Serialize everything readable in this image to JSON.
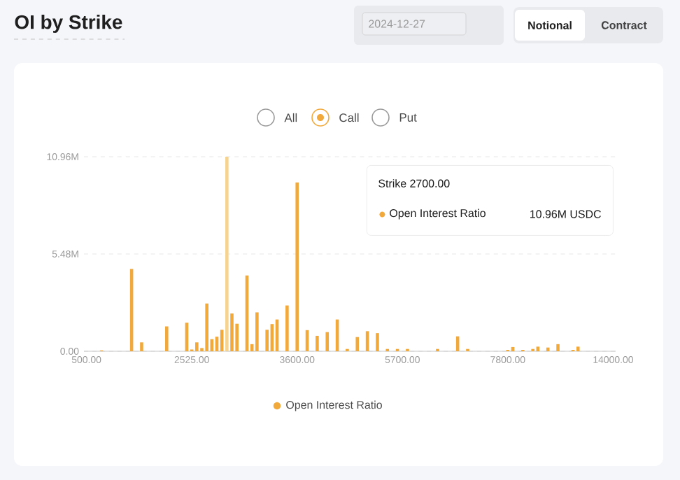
{
  "chart_data": {
    "type": "bar",
    "title": "OI by Strike",
    "categories": [
      "500.00",
      null,
      null,
      null,
      null,
      null,
      null,
      null,
      null,
      null,
      null,
      null,
      null,
      null,
      null,
      null,
      null,
      null,
      null,
      null,
      null,
      "2525.00",
      null,
      null,
      null,
      null,
      null,
      null,
      null,
      null,
      null,
      null,
      null,
      null,
      null,
      null,
      null,
      null,
      null,
      null,
      null,
      null,
      "3600.00",
      null,
      null,
      null,
      null,
      null,
      null,
      null,
      null,
      null,
      null,
      null,
      null,
      null,
      null,
      null,
      null,
      null,
      null,
      null,
      null,
      "5700.00",
      null,
      null,
      null,
      null,
      null,
      null,
      null,
      null,
      null,
      null,
      null,
      null,
      null,
      null,
      null,
      null,
      null,
      null,
      null,
      null,
      "7800.00",
      null,
      null,
      null,
      null,
      null,
      null,
      null,
      null,
      null,
      null,
      null,
      null,
      null,
      null,
      null,
      null,
      null,
      null,
      null,
      null,
      "14000.00"
    ],
    "series": [
      {
        "name": "Open Interest Ratio",
        "color": "#f2a93b",
        "values": [
          null,
          null,
          null,
          0.05,
          null,
          null,
          null,
          null,
          null,
          4.64,
          null,
          0.5,
          null,
          null,
          null,
          null,
          1.4,
          null,
          null,
          null,
          1.61,
          0.1,
          0.5,
          0.18,
          2.69,
          0.68,
          0.82,
          1.21,
          10.96,
          2.13,
          1.55,
          null,
          4.27,
          0.4,
          2.19,
          null,
          1.21,
          1.53,
          1.79,
          null,
          2.58,
          null,
          9.51,
          null,
          1.19,
          null,
          0.87,
          null,
          1.08,
          null,
          1.79,
          null,
          0.13,
          null,
          0.8,
          null,
          1.13,
          null,
          1.02,
          null,
          0.13,
          null,
          0.13,
          null,
          0.13,
          null,
          null,
          null,
          null,
          null,
          0.13,
          null,
          null,
          null,
          0.84,
          null,
          0.13,
          null,
          null,
          null,
          null,
          null,
          null,
          null,
          0.08,
          0.24,
          null,
          0.08,
          null,
          0.13,
          0.26,
          null,
          0.21,
          null,
          0.4,
          null,
          null,
          0.08,
          0.26,
          null,
          null,
          null,
          null,
          null,
          null,
          null
        ],
        "colors": [
          "#f2a93b",
          "#f2a93b",
          "#f2a93b",
          "#f2a93b",
          "#f2a93b",
          "#f2a93b",
          "#f2a93b",
          "#f2a93b",
          "#f2a93b",
          "#f2a93b",
          "#f2a93b",
          "#f2a93b",
          "#f2a93b",
          "#f2a93b",
          "#f2a93b",
          "#f2a93b",
          "#f2a93b",
          "#f2a93b",
          "#f2a93b",
          "#f2a93b",
          "#f2a93b",
          "#f2a93b",
          "#f2a93b",
          "#f2a93b",
          "#f2a93b",
          "#f2a93b",
          "#f2a93b",
          "#f2a93b",
          "#f6d48f",
          "#f2a93b",
          "#f2a93b",
          "#f2a93b",
          "#f2a93b",
          "#f2a93b",
          "#f2a93b",
          "#f2a93b",
          "#f2a93b",
          "#f2a93b",
          "#f2a93b",
          "#f2a93b",
          "#f2a93b",
          "#f2a93b",
          "#f2a93b",
          "#f2a93b",
          "#f2a93b",
          "#f2a93b",
          "#f2a93b",
          "#f2a93b",
          "#f2a93b",
          "#f2a93b",
          "#f2a93b",
          "#f2a93b",
          "#f2a93b",
          "#f2a93b",
          "#f2a93b",
          "#f2a93b",
          "#f2a93b",
          "#f2a93b",
          "#f2a93b",
          "#f2a93b",
          "#f2a93b",
          "#f2a93b",
          "#f2a93b",
          "#f2a93b",
          "#f2a93b",
          "#f2a93b",
          "#f2a93b",
          "#f2a93b",
          "#f2a93b",
          "#f2a93b",
          "#f2a93b",
          "#f2a93b",
          "#f2a93b",
          "#f2a93b",
          "#f2a93b",
          "#f2a93b",
          "#f2a93b",
          "#f2a93b",
          "#f2a93b",
          "#f2a93b",
          "#f2a93b",
          "#f2a93b",
          "#f2a93b",
          "#f2a93b",
          "#f2a93b",
          "#f2a93b",
          "#f2a93b",
          "#f2a93b",
          "#f2a93b",
          "#f2a93b",
          "#f2a93b",
          "#f2a93b",
          "#f2a93b",
          "#f2a93b",
          "#f2a93b",
          "#f2a93b",
          "#f2a93b",
          "#f2a93b",
          "#f2a93b",
          "#f2a93b",
          "#f2a93b",
          "#f2a93b",
          "#f2a93b",
          "#f2a93b",
          "#f2a93b",
          "#f2a93b"
        ]
      }
    ],
    "ylim": [
      0,
      10.96
    ],
    "yticks": [
      {
        "value": 0,
        "label": "0.00"
      },
      {
        "value": 5.48,
        "label": "5.48M"
      },
      {
        "value": 10.96,
        "label": "10.96M"
      }
    ],
    "grid": "y",
    "legend": "bottom",
    "annotations": [
      "2024-12-27",
      "Notional",
      "Contract",
      "All",
      "Call",
      "Put",
      "Strike 2700.00",
      "Open Interest Ratio",
      "10.96M USDC"
    ]
  }
}
